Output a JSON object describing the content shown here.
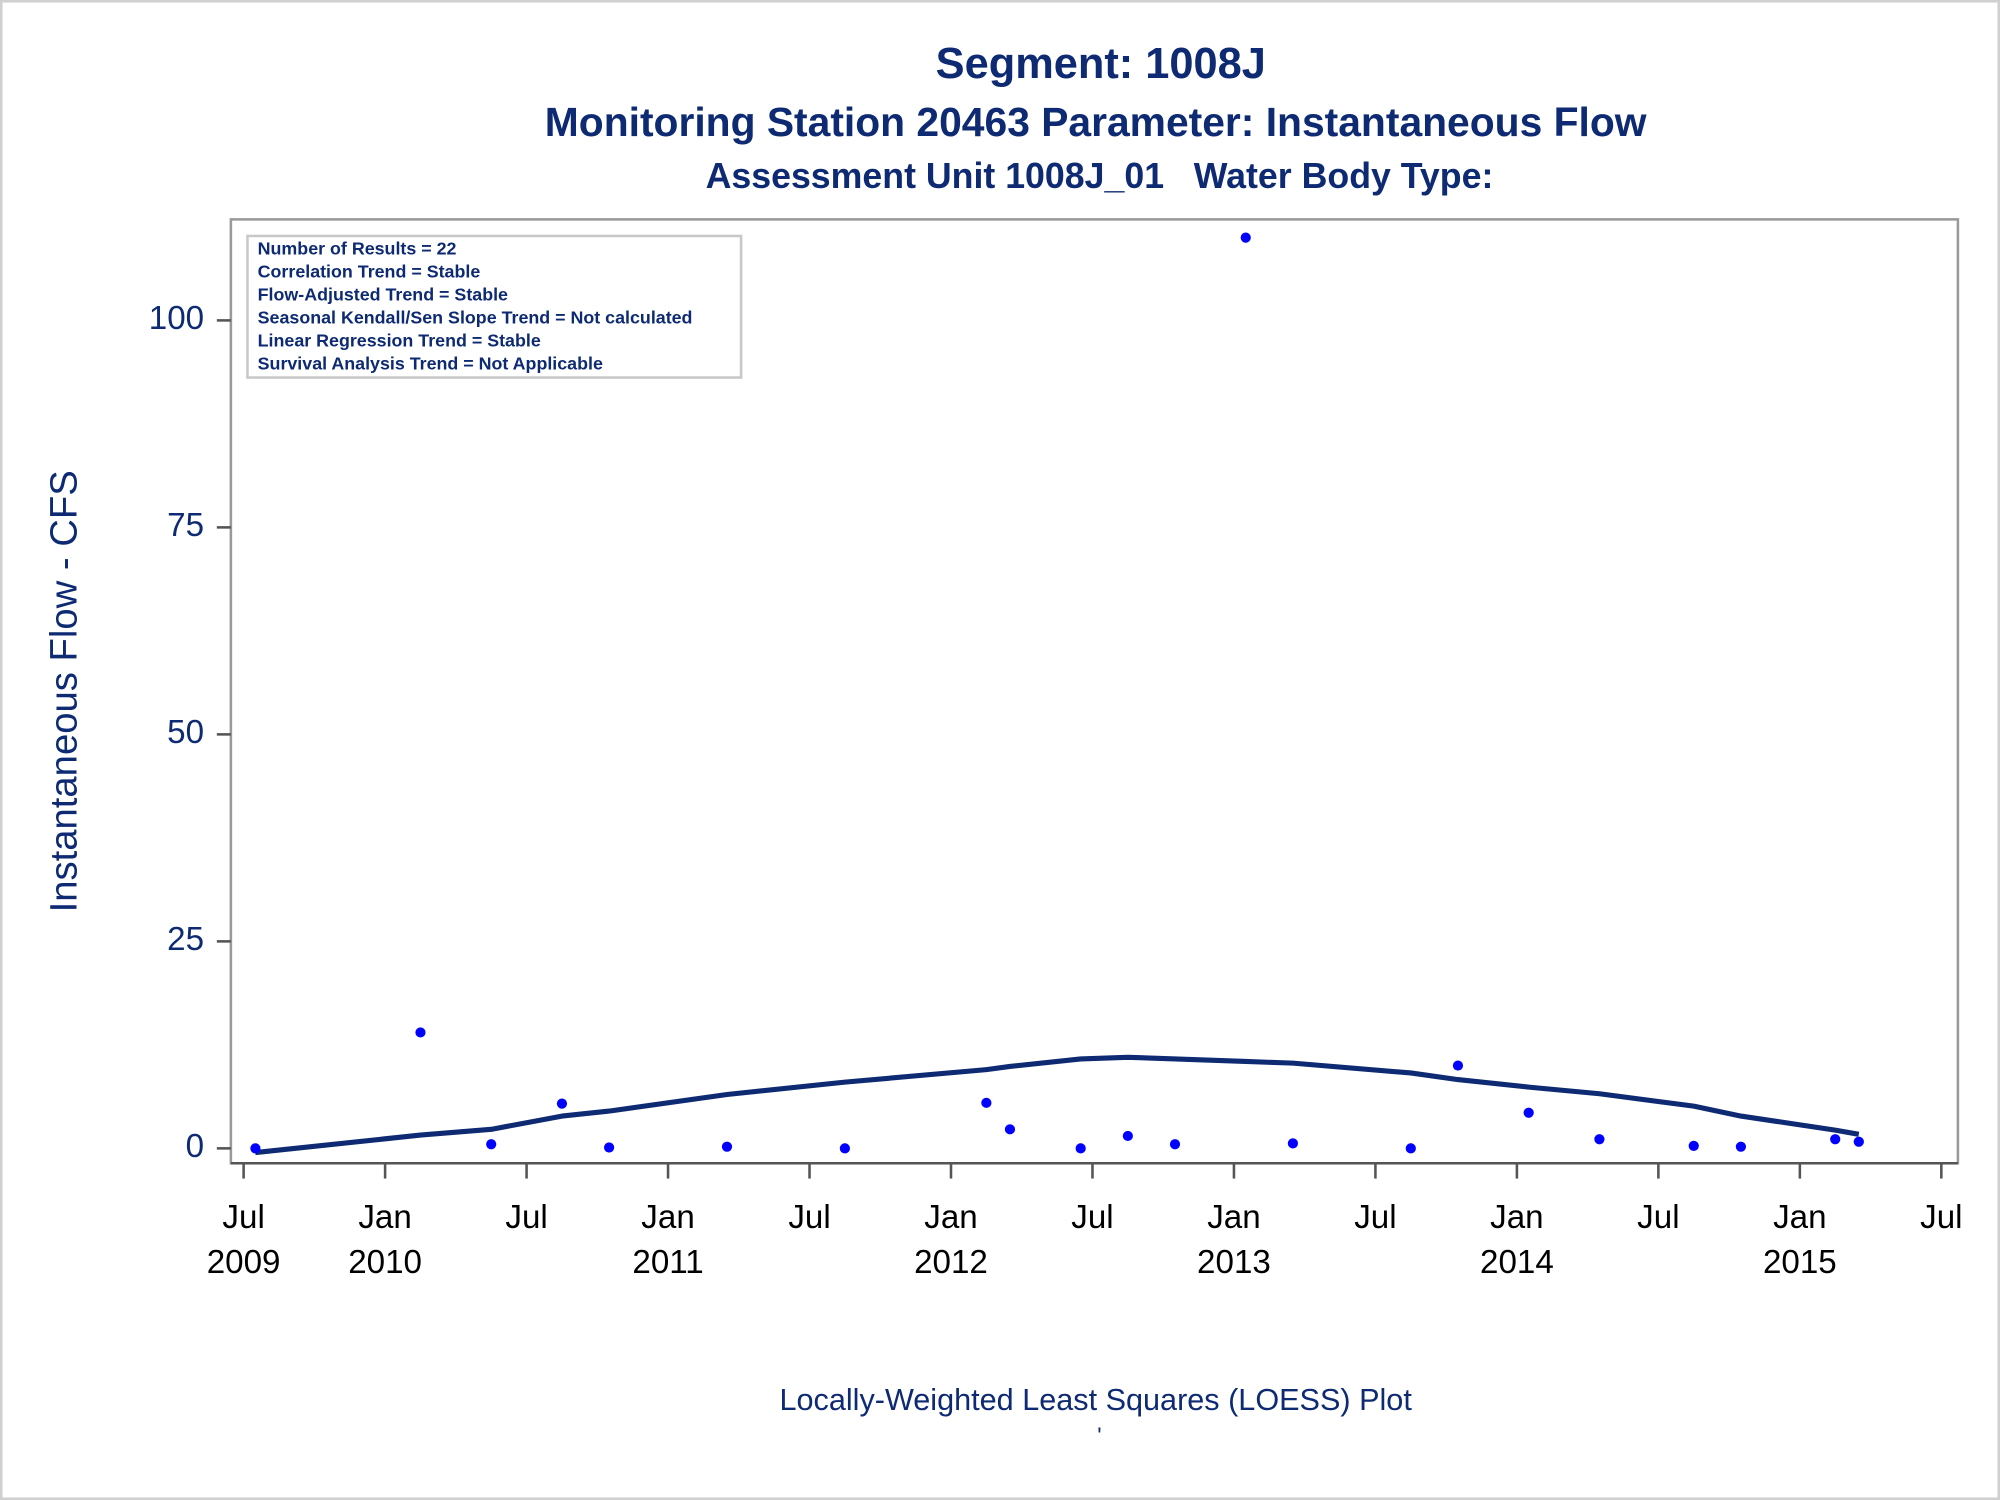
{
  "chart_data": {
    "type": "scatter",
    "title": "Segment: 1008J",
    "subtitle": "Monitoring Station 20463 Parameter: Instantaneous Flow",
    "subtitle2": "Assessment Unit 1008J_01   Water Body Type:",
    "y_label": "Instantaneous Flow - CFS",
    "footnote": "Locally-Weighted Least Squares (LOESS) Plot",
    "footnote2": "'",
    "annotations": [
      "Number of Results = 22",
      "Correlation Trend = Stable",
      "Flow-Adjusted Trend = Stable",
      "Seasonal Kendall/Sen Slope Trend = Not calculated",
      "Linear Regression Trend = Stable",
      "Survival Analysis Trend = Not Applicable"
    ],
    "x": [
      "2009-07",
      "2010-02",
      "2010-05",
      "2010-08",
      "2010-10",
      "2011-03",
      "2011-08",
      "2012-02",
      "2012-03",
      "2012-06",
      "2012-08",
      "2012-10",
      "2013-01",
      "2013-03",
      "2013-08",
      "2013-10",
      "2014-01",
      "2014-04",
      "2014-08",
      "2014-10",
      "2015-02",
      "2015-03"
    ],
    "series": [
      {
        "style": "markers",
        "color": "#0000ff",
        "values": [
          0,
          14,
          0.5,
          5.4,
          0.1,
          0.2,
          0,
          5.5,
          2.3,
          0,
          1.5,
          0.5,
          110,
          0.6,
          0,
          10,
          4.3,
          1.1,
          0.3,
          0.2,
          1.1,
          0.8
        ]
      },
      {
        "style": "line",
        "color": "#0d2a73",
        "values": [
          -0.5,
          1.6,
          2.3,
          3.9,
          4.5,
          6.5,
          8.0,
          9.5,
          9.9,
          10.8,
          11.0,
          10.8,
          10.5,
          10.3,
          9.1,
          8.3,
          7.4,
          6.6,
          5.1,
          3.9,
          2.2,
          1.7
        ]
      }
    ],
    "xlim": [
      "2009-07",
      "2015-07"
    ],
    "xticks": [
      {
        "value": "2009-07",
        "label": [
          "Jul",
          "2009"
        ]
      },
      {
        "value": "2010-01",
        "label": [
          "Jan",
          "2010"
        ]
      },
      {
        "value": "2010-07",
        "label": [
          "Jul"
        ]
      },
      {
        "value": "2011-01",
        "label": [
          "Jan",
          "2011"
        ]
      },
      {
        "value": "2011-07",
        "label": [
          "Jul"
        ]
      },
      {
        "value": "2012-01",
        "label": [
          "Jan",
          "2012"
        ]
      },
      {
        "value": "2012-07",
        "label": [
          "Jul"
        ]
      },
      {
        "value": "2013-01",
        "label": [
          "Jan",
          "2013"
        ]
      },
      {
        "value": "2013-07",
        "label": [
          "Jul"
        ]
      },
      {
        "value": "2014-01",
        "label": [
          "Jan",
          "2014"
        ]
      },
      {
        "value": "2014-07",
        "label": [
          "Jul"
        ]
      },
      {
        "value": "2015-01",
        "label": [
          "Jan",
          "2015"
        ]
      },
      {
        "value": "2015-07",
        "label": [
          "Jul"
        ]
      }
    ],
    "ylim": [
      -1.8,
      112.2
    ],
    "yticks": [
      0,
      25,
      50,
      75,
      100
    ],
    "grid": false
  }
}
